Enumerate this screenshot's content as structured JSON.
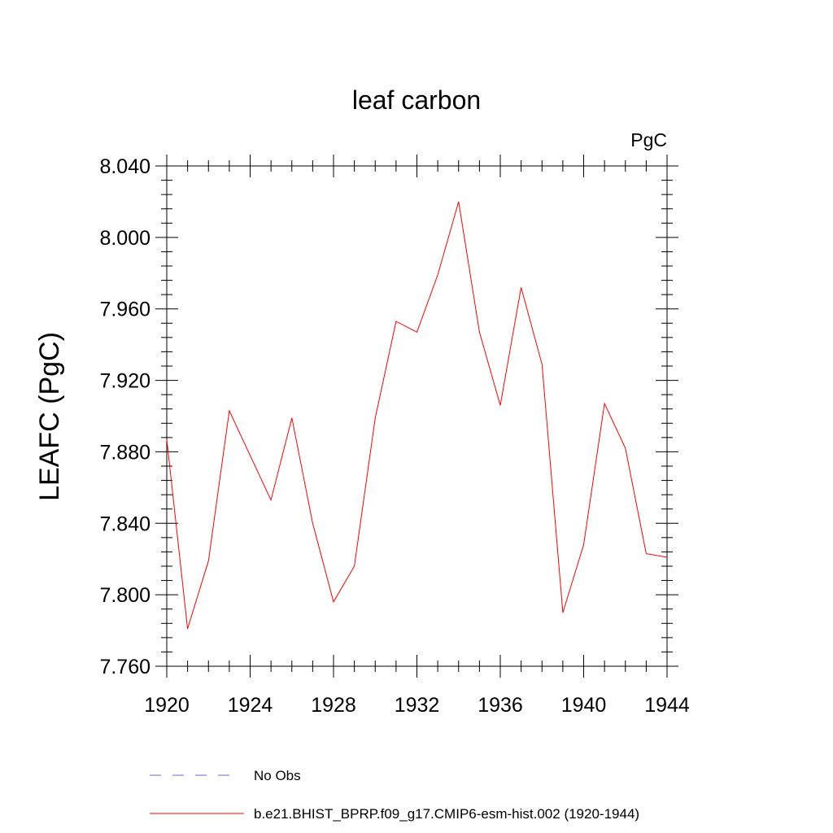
{
  "chart_data": {
    "type": "line",
    "title": "leaf carbon",
    "units_label": "PgC",
    "ylabel": "LEAFC  (PgC)",
    "xlabel": "",
    "xlim": [
      1920,
      1944
    ],
    "ylim": [
      7.76,
      8.04
    ],
    "x_ticks": [
      1920,
      1924,
      1928,
      1932,
      1936,
      1940,
      1944
    ],
    "x_tick_labels": [
      "1920",
      "1924",
      "1928",
      "1932",
      "1936",
      "1940",
      "1944"
    ],
    "y_ticks": [
      7.76,
      7.8,
      7.84,
      7.88,
      7.92,
      7.96,
      8.0,
      8.04
    ],
    "y_tick_labels": [
      "7.760",
      "7.800",
      "7.840",
      "7.880",
      "7.920",
      "7.960",
      "8.000",
      "8.040"
    ],
    "grid": false,
    "series": [
      {
        "name": "b.e21.BHIST_BPRP.f09_g17.CMIP6-esm-hist.002 (1920-1944)",
        "color": "#ff0000",
        "style": "solid",
        "x": [
          1920,
          1921,
          1922,
          1923,
          1924,
          1925,
          1926,
          1927,
          1928,
          1929,
          1930,
          1931,
          1932,
          1933,
          1934,
          1935,
          1936,
          1937,
          1938,
          1939,
          1940,
          1941,
          1942,
          1943,
          1944
        ],
        "values": [
          7.887,
          7.781,
          7.819,
          7.903,
          7.878,
          7.853,
          7.899,
          7.84,
          7.796,
          7.816,
          7.899,
          7.953,
          7.947,
          7.979,
          8.02,
          7.947,
          7.906,
          7.972,
          7.929,
          7.79,
          7.828,
          7.907,
          7.882,
          7.823,
          7.821
        ]
      }
    ],
    "legend": {
      "placement": "bottom",
      "entries": [
        {
          "label": "No Obs",
          "color": "#6666cc",
          "style": "dashed"
        },
        {
          "label": "b.e21.BHIST_BPRP.f09_g17.CMIP6-esm-hist.002 (1920-1944)",
          "color": "#ff0000",
          "style": "solid"
        }
      ]
    }
  }
}
